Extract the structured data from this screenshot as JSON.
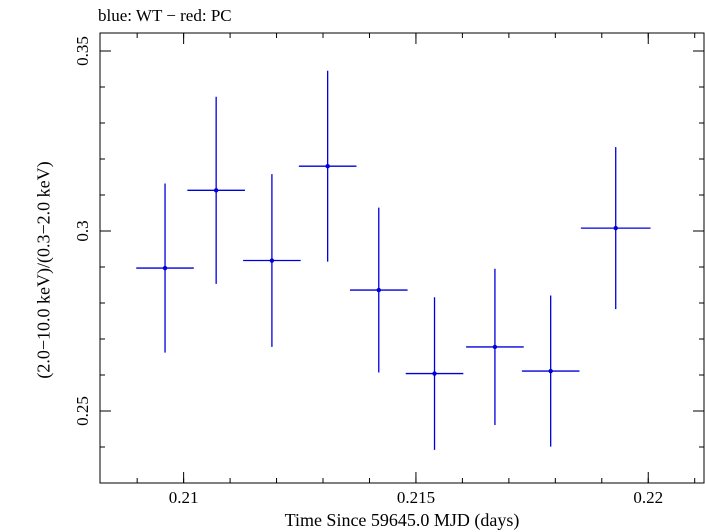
{
  "chart_data": {
    "type": "scatter",
    "title": "blue: WT − red: PC",
    "xlabel": "Time Since 59645.0 MJD (days)",
    "ylabel": "(2.0−10.0 keV)/(0.3−2.0 keV)",
    "xlim": [
      0.2082,
      0.2212
    ],
    "ylim": [
      0.23,
      0.355
    ],
    "x_ticks": [
      {
        "value": 0.21,
        "label": "0.21"
      },
      {
        "value": 0.215,
        "label": "0.215"
      },
      {
        "value": 0.22,
        "label": "0.22"
      }
    ],
    "y_ticks": [
      {
        "value": 0.25,
        "label": "0.25"
      },
      {
        "value": 0.3,
        "label": "0.3"
      },
      {
        "value": 0.35,
        "label": "0.35"
      }
    ],
    "grid": false,
    "series": [
      {
        "color": "#0000dd",
        "points": [
          {
            "x": 0.2096,
            "xerr": 0.00062,
            "y": 0.2897,
            "yerr": 0.0235
          },
          {
            "x": 0.2107,
            "xerr": 0.00062,
            "y": 0.3113,
            "yerr": 0.026
          },
          {
            "x": 0.2119,
            "xerr": 0.00062,
            "y": 0.2918,
            "yerr": 0.024
          },
          {
            "x": 0.2131,
            "xerr": 0.00062,
            "y": 0.318,
            "yerr": 0.0265
          },
          {
            "x": 0.2142,
            "xerr": 0.00062,
            "y": 0.2836,
            "yerr": 0.0229
          },
          {
            "x": 0.2154,
            "xerr": 0.00062,
            "y": 0.2604,
            "yerr": 0.0212
          },
          {
            "x": 0.2167,
            "xerr": 0.00062,
            "y": 0.2678,
            "yerr": 0.0217
          },
          {
            "x": 0.2179,
            "xerr": 0.00062,
            "y": 0.2611,
            "yerr": 0.021
          },
          {
            "x": 0.2193,
            "xerr": 0.00075,
            "y": 0.3008,
            "yerr": 0.0225
          }
        ]
      }
    ]
  }
}
